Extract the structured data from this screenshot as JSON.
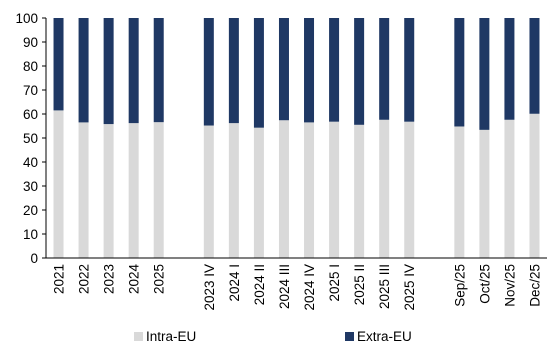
{
  "chart_data": {
    "type": "bar",
    "stacked": true,
    "title": "",
    "xlabel": "",
    "ylabel": "",
    "ylim": [
      0,
      100
    ],
    "yticks": [
      0,
      10,
      20,
      30,
      40,
      50,
      60,
      70,
      80,
      90,
      100
    ],
    "grid": false,
    "legend_position": "bottom",
    "categories": [
      "2021",
      "2022",
      "2023",
      "2024",
      "2025",
      "",
      "2023 IV",
      "2024 I",
      "2024 II",
      "2024 III",
      "2024 IV",
      "2025 I",
      "2025 II",
      "2025 III",
      "2025 IV",
      "",
      "Sep/25",
      "Oct/25",
      "Nov/25",
      "Dec/25"
    ],
    "series": [
      {
        "name": "Intra-EU",
        "color": "#d9d9d9",
        "values": [
          61.5,
          56.5,
          55.8,
          56.2,
          56.6,
          null,
          55.2,
          56.2,
          54.3,
          57.4,
          56.5,
          56.8,
          55.5,
          57.6,
          56.8,
          null,
          54.8,
          53.4,
          57.6,
          60.1
        ]
      },
      {
        "name": "Extra-EU",
        "color": "#1f3864",
        "values": [
          38.5,
          43.5,
          44.2,
          43.8,
          43.4,
          null,
          44.8,
          43.8,
          45.7,
          42.6,
          43.5,
          43.2,
          44.5,
          42.4,
          43.2,
          null,
          45.2,
          46.6,
          42.4,
          39.9
        ]
      }
    ]
  }
}
